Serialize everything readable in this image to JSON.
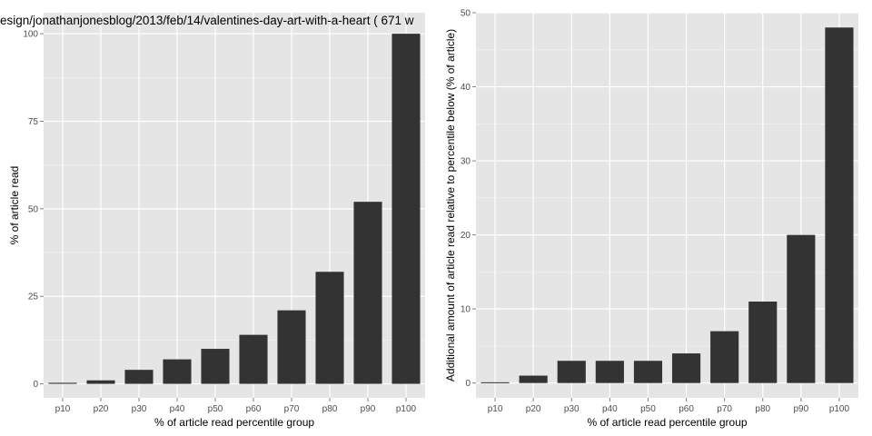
{
  "chart_data": [
    {
      "type": "bar",
      "title": "esign/jonathanjonesblog/2013/feb/14/valentines-day-art-with-a-heart ( 671 w",
      "xlabel": "% of article read percentile group",
      "ylabel": "% of article read",
      "categories": [
        "p10",
        "p20",
        "p30",
        "p40",
        "p50",
        "p60",
        "p70",
        "p80",
        "p90",
        "p100"
      ],
      "values": [
        0.3,
        1,
        4,
        7,
        10,
        14,
        21,
        32,
        52,
        100
      ],
      "ylim": [
        -4,
        106
      ],
      "yticks": [
        0,
        25,
        50,
        75,
        100
      ],
      "grid": true,
      "bar_color": "#333333",
      "panel_color": "#e5e5e5"
    },
    {
      "type": "bar",
      "title": "",
      "xlabel": "% of article read percentile group",
      "ylabel": "Additional amount of article read relative to percentile below (% of article)",
      "categories": [
        "p10",
        "p20",
        "p30",
        "p40",
        "p50",
        "p60",
        "p70",
        "p80",
        "p90",
        "p100"
      ],
      "values": [
        0.1,
        1,
        3,
        3,
        3,
        4,
        7,
        11,
        20,
        48
      ],
      "ylim": [
        -2,
        50
      ],
      "yticks": [
        0,
        10,
        20,
        30,
        40,
        50
      ],
      "grid": true,
      "bar_color": "#333333",
      "panel_color": "#e5e5e5"
    }
  ]
}
